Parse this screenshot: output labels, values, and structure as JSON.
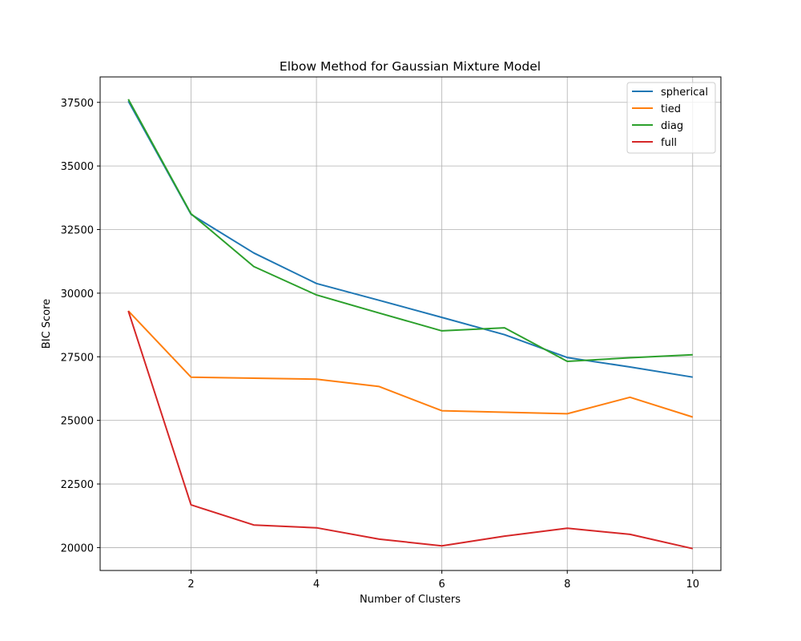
{
  "chart_data": {
    "type": "line",
    "title": "Elbow Method for Gaussian Mixture Model",
    "xlabel": "Number of Clusters",
    "ylabel": "BIC Score",
    "xlim": [
      0.55,
      10.45
    ],
    "ylim": [
      19100,
      38500
    ],
    "xticks": [
      2,
      4,
      6,
      8,
      10
    ],
    "yticks": [
      20000,
      22500,
      25000,
      27500,
      30000,
      32500,
      35000,
      37500
    ],
    "grid": true,
    "legend_position": "top-right",
    "x": [
      1,
      2,
      3,
      4,
      5,
      6,
      7,
      8,
      9,
      10
    ],
    "series": [
      {
        "name": "spherical",
        "color": "#1f77b4",
        "values": [
          37550,
          33100,
          31580,
          30380,
          29720,
          29050,
          28370,
          27470,
          27100,
          26700
        ]
      },
      {
        "name": "tied",
        "color": "#ff7f0e",
        "values": [
          29300,
          26700,
          26660,
          26620,
          26330,
          25380,
          25320,
          25260,
          25910,
          25130
        ]
      },
      {
        "name": "diag",
        "color": "#2ca02c",
        "values": [
          37620,
          33120,
          31050,
          29930,
          29220,
          28520,
          28640,
          27320,
          27460,
          27580
        ]
      },
      {
        "name": "full",
        "color": "#d62728",
        "values": [
          29300,
          21680,
          20890,
          20780,
          20330,
          20070,
          20450,
          20760,
          20520,
          19960
        ]
      }
    ]
  }
}
